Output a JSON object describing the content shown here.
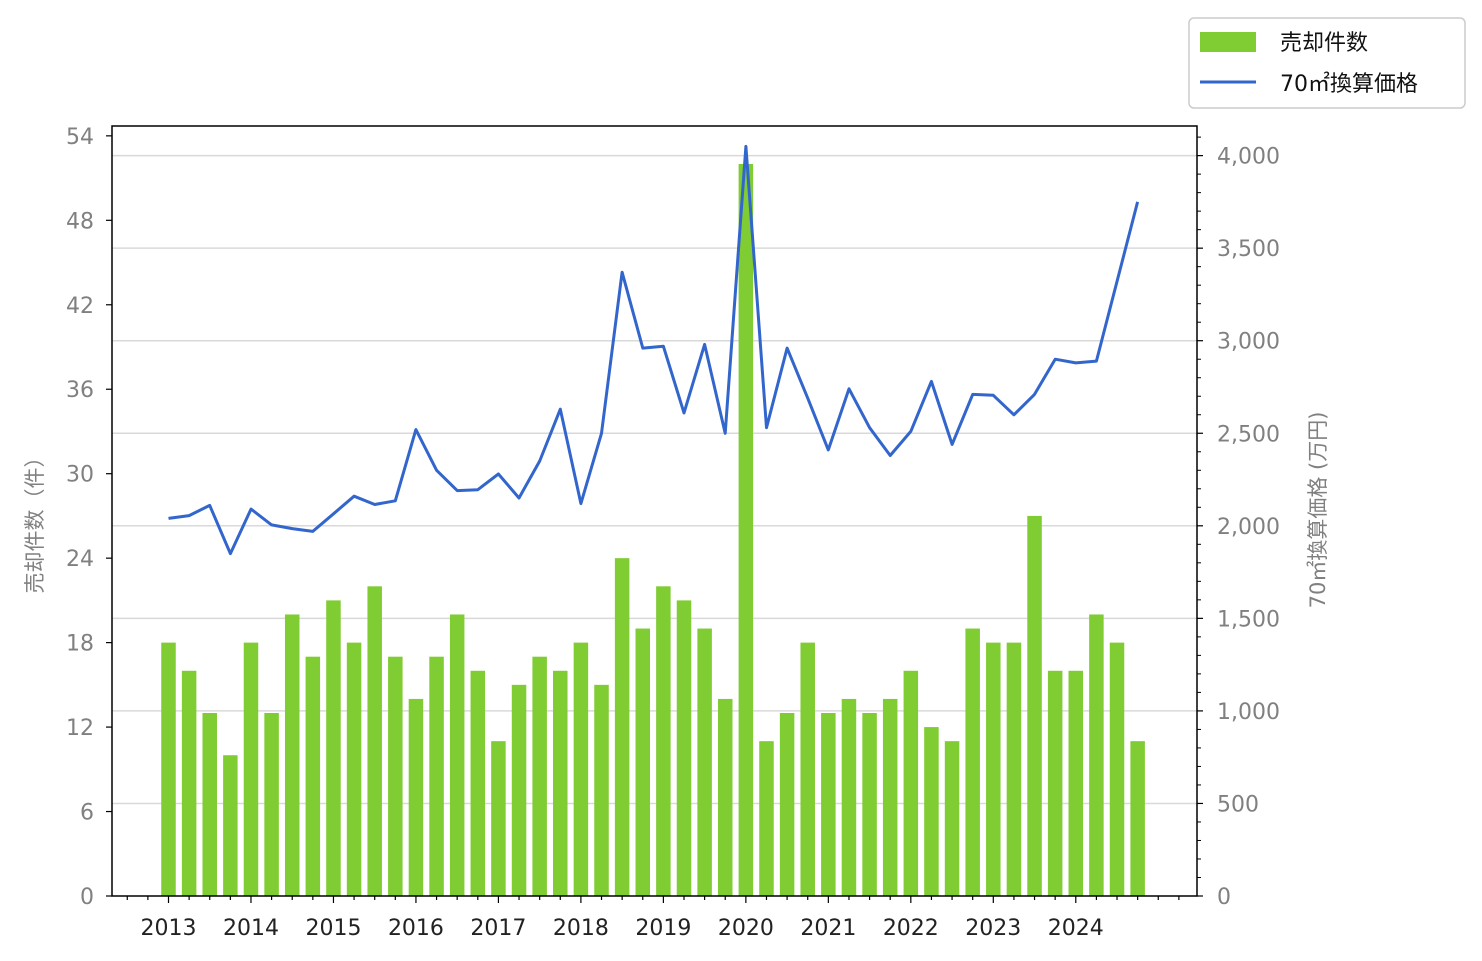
{
  "chart_data": {
    "type": "bar+line",
    "title": "",
    "x_ticks": [
      "2013",
      "2014",
      "2015",
      "2016",
      "2017",
      "2018",
      "2019",
      "2020",
      "2021",
      "2022",
      "2023",
      "2024"
    ],
    "y_left": {
      "label": "売却件数（件）",
      "ticks": [
        "0",
        "6",
        "12",
        "18",
        "24",
        "30",
        "36",
        "42",
        "48",
        "54"
      ],
      "lim": [
        0,
        54.7
      ]
    },
    "y_right": {
      "label": "70㎡換算価格 (万円)",
      "ticks": [
        "0",
        "500",
        "1,000",
        "1,500",
        "2,000",
        "2,500",
        "3,000",
        "3,500",
        "4,000"
      ],
      "lim": [
        0,
        4160
      ]
    },
    "series": [
      {
        "name": "売却件数",
        "type": "bar",
        "axis": "left",
        "color": "#80cc33",
        "values": [
          18,
          16,
          13,
          10,
          18,
          13,
          20,
          17,
          21,
          18,
          22,
          17,
          14,
          17,
          20,
          16,
          11,
          15,
          17,
          16,
          18,
          15,
          24,
          19,
          22,
          21,
          19,
          14,
          52,
          11,
          13,
          18,
          13,
          14,
          13,
          14,
          16,
          12,
          11,
          19,
          18,
          18,
          27,
          16,
          16,
          20,
          18,
          11
        ]
      },
      {
        "name": "70㎡換算価格",
        "type": "line",
        "axis": "right",
        "color": "#3366cc",
        "values": [
          2040,
          2055,
          2110,
          1850,
          2090,
          2005,
          1985,
          1970,
          2065,
          2160,
          2115,
          2135,
          2520,
          2300,
          2190,
          2195,
          2280,
          2150,
          2350,
          2630,
          2120,
          2500,
          3370,
          2960,
          2970,
          2610,
          2980,
          2500,
          4050,
          2530,
          2960,
          2690,
          2410,
          2740,
          2530,
          2380,
          2510,
          2780,
          2440,
          2710,
          2705,
          2600,
          2710,
          2900,
          2880,
          2890,
          3320,
          3750
        ]
      }
    ],
    "legend_position": "top-right, outside plot",
    "grid": "horizontal lines at right-axis ticks"
  }
}
